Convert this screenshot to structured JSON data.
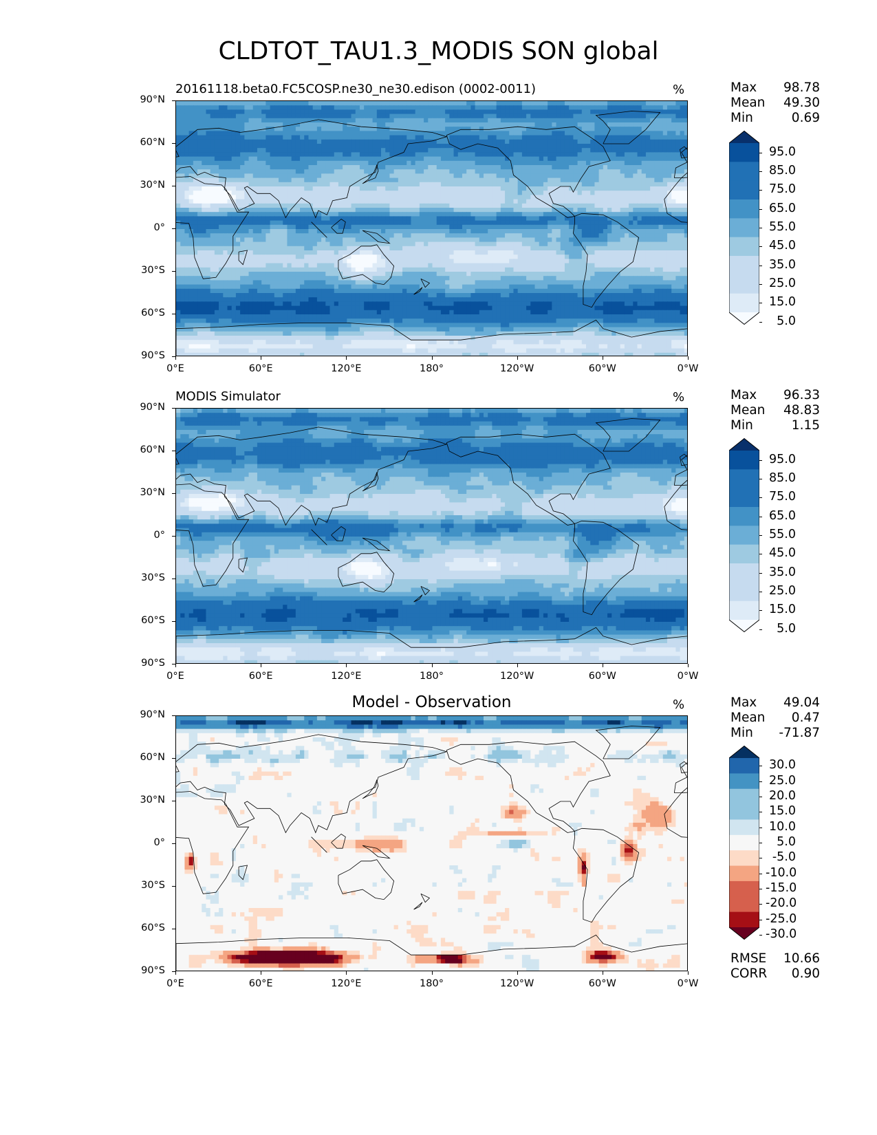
{
  "figure_title": "CLDTOT_TAU1.3_MODIS SON global",
  "units": "%",
  "lat_ticks": [
    "90°N",
    "60°N",
    "30°N",
    "0°",
    "30°S",
    "60°S",
    "90°S"
  ],
  "lon_ticks": [
    "0°E",
    "60°E",
    "120°E",
    "180°",
    "120°W",
    "60°W",
    "0°W"
  ],
  "colors": {
    "blues": [
      "#f7fbff",
      "#deebf7",
      "#c6dbef",
      "#9ecae1",
      "#6baed6",
      "#4292c6",
      "#2171b5",
      "#08519c",
      "#08306b"
    ],
    "diverging": [
      "#67001f",
      "#a50f15",
      "#d6604d",
      "#f4a582",
      "#fddbc7",
      "#f7f7f7",
      "#d1e5f0",
      "#92c5de",
      "#4393c3",
      "#2166ac",
      "#053061"
    ]
  },
  "panels": [
    {
      "title": "20161118.beta0.FC5COSP.ne30_ne30.edison (0002-0011)",
      "title_align": "left",
      "stats": [
        {
          "label": "Max",
          "value": "98.78"
        },
        {
          "label": "Mean",
          "value": "49.30"
        },
        {
          "label": "Min",
          "value": "0.69"
        }
      ],
      "colorbar_labels": [
        "95.0",
        "85.0",
        "75.0",
        "65.0",
        "55.0",
        "45.0",
        "35.0",
        "25.0",
        "15.0",
        "5.0"
      ],
      "extra_stats": []
    },
    {
      "title": "MODIS Simulator",
      "title_align": "left",
      "stats": [
        {
          "label": "Max",
          "value": "96.33"
        },
        {
          "label": "Mean",
          "value": "48.83"
        },
        {
          "label": "Min",
          "value": "1.15"
        }
      ],
      "colorbar_labels": [
        "95.0",
        "85.0",
        "75.0",
        "65.0",
        "55.0",
        "45.0",
        "35.0",
        "25.0",
        "15.0",
        "5.0"
      ],
      "extra_stats": []
    },
    {
      "title": "Model - Observation",
      "title_align": "center",
      "stats": [
        {
          "label": "Max",
          "value": "49.04"
        },
        {
          "label": "Mean",
          "value": "0.47"
        },
        {
          "label": "Min",
          "value": "-71.87"
        }
      ],
      "colorbar_labels": [
        "30.0",
        "25.0",
        "20.0",
        "15.0",
        "10.0",
        "5.0",
        "-5.0",
        "-10.0",
        "-15.0",
        "-20.0",
        "-25.0",
        "-30.0"
      ],
      "extra_stats": [
        {
          "label": "RMSE",
          "value": "10.66"
        },
        {
          "label": "CORR",
          "value": "0.90"
        }
      ]
    }
  ],
  "chart_data": [
    {
      "type": "heatmap",
      "title": "20161118.beta0.FC5COSP.ne30_ne30.edison (0002-0011)",
      "variable": "CLDTOT_TAU1.3_MODIS",
      "units": "%",
      "xlim": [
        0,
        360
      ],
      "ylim": [
        -90,
        90
      ],
      "levels": [
        0,
        5,
        15,
        25,
        35,
        45,
        55,
        65,
        75,
        85,
        95,
        100
      ],
      "max": 98.78,
      "mean": 49.3,
      "min": 0.69
    },
    {
      "type": "heatmap",
      "title": "MODIS Simulator",
      "variable": "CLDTOT_TAU1.3_MODIS",
      "units": "%",
      "xlim": [
        0,
        360
      ],
      "ylim": [
        -90,
        90
      ],
      "levels": [
        0,
        5,
        15,
        25,
        35,
        45,
        55,
        65,
        75,
        85,
        95,
        100
      ],
      "max": 96.33,
      "mean": 48.83,
      "min": 1.15
    },
    {
      "type": "heatmap",
      "title": "Model - Observation",
      "units": "%",
      "xlim": [
        0,
        360
      ],
      "ylim": [
        -90,
        90
      ],
      "levels": [
        -30,
        -25,
        -20,
        -15,
        -10,
        -5,
        5,
        10,
        15,
        20,
        25,
        30
      ],
      "max": 49.04,
      "mean": 0.47,
      "min": -71.87,
      "rmse": 10.66,
      "corr": 0.9
    }
  ]
}
